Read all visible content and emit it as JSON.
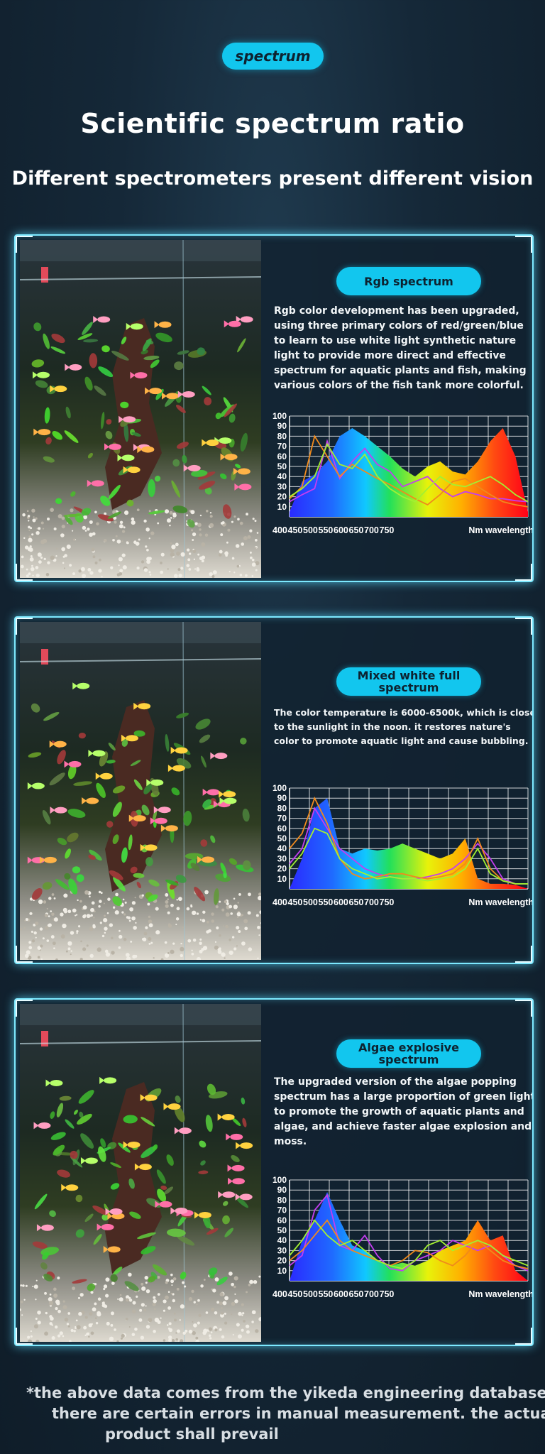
{
  "header": {
    "badge": "spectrum",
    "title": "Scientific spectrum ratio",
    "subtitle": "Different spectrometers present different vision"
  },
  "panels": [
    {
      "pill": "Rgb spectrum",
      "description": "Rgb color development has been upgraded, using three primary colors of red/green/blue to learn to use white light synthetic nature light to provide more direct and effective spectrum for aquatic plants and fish, making various colors of the fish tank more colorful."
    },
    {
      "pill": "Mixed white full spectrum",
      "description": "The color temperature is 6000-6500k, which is close to the sunlight in the noon. it restores nature's color to promote aquatic light and cause bubbling."
    },
    {
      "pill": "Algae explosive spectrum",
      "description": "The upgraded version of the algae popping spectrum has a large proportion of green light to promote the growth of aquatic plants and algae, and achieve faster algae explosion and moss."
    }
  ],
  "chart_data": [
    {
      "type": "area",
      "xlabel": "Nm wavelength",
      "x_ticks": [
        "400",
        "450",
        "500",
        "550",
        "600",
        "650",
        "700",
        "750"
      ],
      "y_ticks": [
        10,
        20,
        30,
        40,
        50,
        60,
        70,
        80,
        90,
        100
      ],
      "ylim": [
        0,
        100
      ],
      "x": [
        400,
        420,
        440,
        460,
        480,
        500,
        520,
        540,
        560,
        580,
        600,
        620,
        640,
        660,
        680,
        700,
        720,
        740,
        760,
        780
      ],
      "series": [
        {
          "values": [
            5,
            35,
            42,
            55,
            80,
            88,
            80,
            70,
            60,
            48,
            40,
            50,
            55,
            45,
            42,
            55,
            75,
            88,
            60,
            5
          ]
        },
        {
          "values": [
            15,
            22,
            28,
            75,
            38,
            55,
            68,
            52,
            45,
            30,
            35,
            40,
            28,
            20,
            25,
            22,
            18,
            18,
            16,
            15
          ]
        },
        {
          "values": [
            18,
            30,
            80,
            60,
            40,
            52,
            45,
            38,
            32,
            25,
            18,
            12,
            22,
            35,
            38,
            30,
            22,
            15,
            12,
            10
          ]
        },
        {
          "values": [
            20,
            28,
            40,
            72,
            52,
            48,
            62,
            40,
            28,
            20,
            15,
            28,
            40,
            32,
            30,
            35,
            40,
            32,
            22,
            15
          ]
        }
      ]
    },
    {
      "type": "area",
      "xlabel": "Nm wavelength",
      "x_ticks": [
        "400",
        "450",
        "500",
        "550",
        "600",
        "650",
        "700",
        "750"
      ],
      "y_ticks": [
        10,
        20,
        30,
        40,
        50,
        60,
        70,
        80,
        90,
        100
      ],
      "ylim": [
        0,
        100
      ],
      "x": [
        400,
        420,
        440,
        460,
        480,
        500,
        520,
        540,
        560,
        580,
        600,
        620,
        640,
        660,
        680,
        700,
        720,
        740,
        760,
        780
      ],
      "series": [
        {
          "values": [
            0,
            30,
            80,
            90,
            40,
            35,
            40,
            38,
            40,
            45,
            40,
            35,
            30,
            35,
            50,
            10,
            5,
            5,
            4,
            0
          ]
        },
        {
          "values": [
            25,
            40,
            80,
            60,
            40,
            30,
            20,
            15,
            12,
            10,
            10,
            12,
            15,
            20,
            30,
            45,
            30,
            10,
            5,
            5
          ]
        },
        {
          "values": [
            40,
            55,
            90,
            65,
            30,
            15,
            10,
            12,
            15,
            15,
            12,
            10,
            12,
            15,
            25,
            50,
            20,
            8,
            5,
            5
          ]
        },
        {
          "values": [
            20,
            35,
            60,
            55,
            30,
            20,
            15,
            10,
            12,
            10,
            10,
            8,
            10,
            12,
            20,
            40,
            15,
            8,
            5,
            5
          ]
        }
      ]
    },
    {
      "type": "area",
      "xlabel": "Nm wavelength",
      "x_ticks": [
        "400",
        "450",
        "500",
        "550",
        "600",
        "650",
        "700",
        "750"
      ],
      "y_ticks": [
        10,
        20,
        30,
        40,
        50,
        60,
        70,
        80,
        90,
        100
      ],
      "ylim": [
        0,
        100
      ],
      "x": [
        400,
        420,
        440,
        460,
        480,
        500,
        520,
        540,
        560,
        580,
        600,
        620,
        640,
        660,
        680,
        700,
        720,
        740,
        760,
        780
      ],
      "series": [
        {
          "values": [
            0,
            40,
            60,
            88,
            60,
            35,
            30,
            20,
            15,
            18,
            15,
            20,
            30,
            35,
            40,
            60,
            40,
            45,
            10,
            0
          ]
        },
        {
          "values": [
            15,
            25,
            70,
            85,
            35,
            30,
            45,
            25,
            12,
            10,
            20,
            25,
            30,
            40,
            35,
            30,
            35,
            25,
            15,
            10
          ]
        },
        {
          "values": [
            20,
            30,
            45,
            60,
            40,
            30,
            25,
            20,
            15,
            20,
            30,
            28,
            20,
            15,
            25,
            40,
            30,
            20,
            15,
            12
          ]
        },
        {
          "values": [
            25,
            40,
            60,
            45,
            35,
            40,
            30,
            20,
            15,
            12,
            20,
            35,
            40,
            30,
            35,
            40,
            35,
            25,
            20,
            15
          ]
        }
      ]
    }
  ],
  "footer": {
    "line1": "*the above data comes from the yikeda engineering database.",
    "line2": "there are certain errors in manual measurement. the actual",
    "line3": "product shall prevail"
  }
}
